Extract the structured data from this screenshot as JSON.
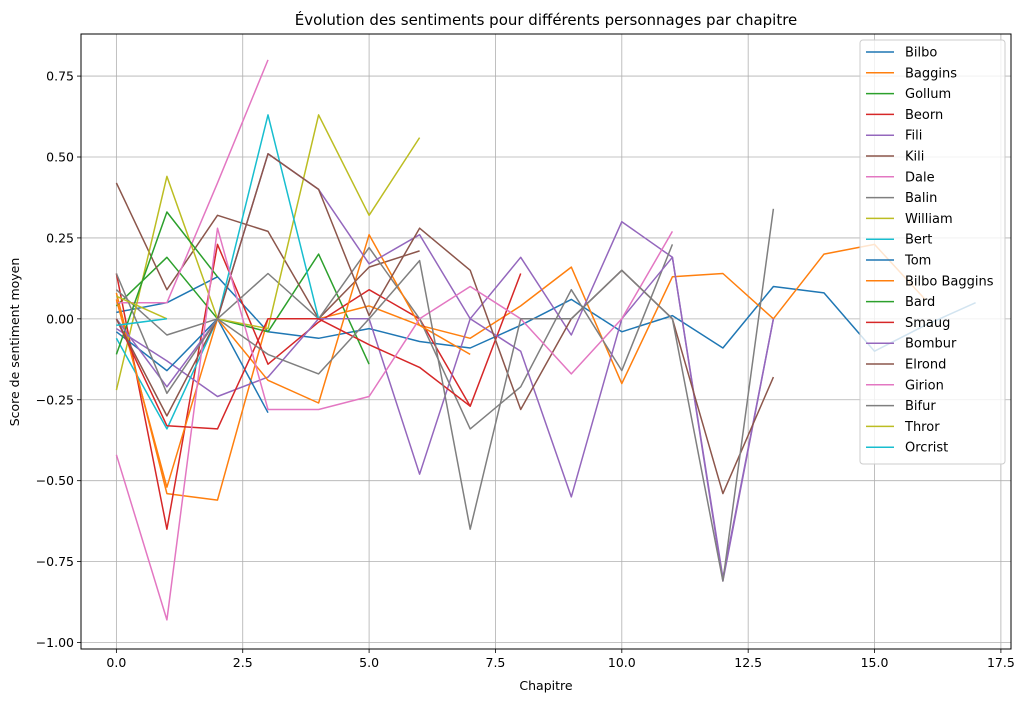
{
  "chart_data": {
    "type": "line",
    "title": "Évolution des sentiments pour différents personnages par chapitre",
    "xlabel": "Chapitre",
    "ylabel": "Score de sentiment moyen",
    "xlim": [
      -0.7,
      17.7
    ],
    "ylim": [
      -1.02,
      0.88
    ],
    "xticks": [
      0,
      2.5,
      5,
      7.5,
      10,
      12.5,
      15,
      17.5
    ],
    "xtick_labels": [
      "0.0",
      "2.5",
      "5.0",
      "7.5",
      "10.0",
      "12.5",
      "15.0",
      "17.5"
    ],
    "yticks": [
      -1.0,
      -0.75,
      -0.5,
      -0.25,
      0,
      0.25,
      0.5,
      0.75
    ],
    "ytick_labels": [
      "−1.00",
      "−0.75",
      "−0.50",
      "−0.25",
      "0.00",
      "0.25",
      "0.50",
      "0.75"
    ],
    "grid": true,
    "legend_position": "top-right",
    "series": [
      {
        "name": "Bilbo",
        "color": "#1f77b4",
        "x": [
          0,
          1,
          2,
          3,
          4,
          5,
          6,
          7,
          8,
          9,
          10,
          11,
          12,
          13,
          14,
          15,
          16,
          17
        ],
        "y": [
          0.02,
          0.05,
          0.13,
          -0.04,
          -0.06,
          -0.03,
          -0.07,
          -0.09,
          -0.02,
          0.06,
          -0.04,
          0.01,
          -0.09,
          0.1,
          0.08,
          -0.1,
          -0.02,
          0.05
        ]
      },
      {
        "name": "Baggins",
        "color": "#ff7f0e",
        "x": [
          0,
          1,
          2,
          3,
          4,
          5,
          6,
          7,
          8,
          9,
          10,
          11,
          12,
          13,
          14,
          15,
          16
        ],
        "y": [
          0.08,
          -0.54,
          -0.56,
          0.0,
          0.0,
          0.04,
          -0.02,
          -0.06,
          0.04,
          0.16,
          -0.2,
          0.13,
          0.14,
          0.0,
          0.2,
          0.23,
          0.06
        ]
      },
      {
        "name": "Gollum",
        "color": "#2ca02c",
        "x": [
          0,
          1,
          2,
          3,
          4,
          5
        ],
        "y": [
          0.04,
          0.19,
          0.0,
          -0.04,
          0.2,
          -0.14
        ]
      },
      {
        "name": "Beorn",
        "color": "#d62728",
        "x": [
          0,
          1,
          2,
          3,
          4,
          5,
          6,
          7,
          8
        ],
        "y": [
          0.14,
          -0.65,
          0.23,
          -0.14,
          -0.01,
          0.09,
          0.0,
          -0.27,
          0.14
        ]
      },
      {
        "name": "Fili",
        "color": "#9467bd",
        "x": [
          0,
          1,
          2,
          3,
          4,
          5,
          6,
          7,
          8,
          9,
          10,
          11,
          12,
          13
        ],
        "y": [
          -0.03,
          -0.13,
          -0.24,
          -0.18,
          0.0,
          0.0,
          -0.48,
          0.0,
          0.19,
          -0.05,
          0.3,
          0.19,
          -0.81,
          0.0
        ]
      },
      {
        "name": "Kili",
        "color": "#8c564b",
        "x": [
          0,
          1,
          2,
          3,
          4,
          5,
          6
        ],
        "y": [
          0.42,
          0.09,
          0.32,
          0.27,
          0.0,
          0.16,
          0.21
        ]
      },
      {
        "name": "Dale",
        "color": "#e377c2",
        "x": [
          0,
          1,
          2,
          3
        ],
        "y": [
          0.05,
          0.05,
          0.42,
          0.8
        ]
      },
      {
        "name": "Balin",
        "color": "#7f7f7f",
        "x": [
          0,
          1,
          2,
          3,
          4,
          5,
          6,
          7,
          8,
          9,
          10,
          11
        ],
        "y": [
          0.09,
          -0.05,
          0.0,
          0.14,
          0.0,
          0.22,
          0.0,
          -0.34,
          -0.21,
          0.09,
          -0.16,
          0.23
        ]
      },
      {
        "name": "William",
        "color": "#bcbd22",
        "x": [
          0,
          1,
          2,
          3,
          4,
          5,
          6
        ],
        "y": [
          -0.22,
          0.44,
          0.0,
          -0.03,
          0.63,
          0.32,
          0.56
        ]
      },
      {
        "name": "Bert",
        "color": "#17becf",
        "x": [
          0,
          1,
          2,
          3,
          4
        ],
        "y": [
          -0.06,
          -0.34,
          0.0,
          0.63,
          0.0
        ]
      },
      {
        "name": "Tom",
        "color": "#1f77b4",
        "x": [
          0,
          1,
          2,
          3
        ],
        "y": [
          -0.04,
          -0.16,
          0.0,
          -0.29
        ]
      },
      {
        "name": "Bilbo Baggins",
        "color": "#ff7f0e",
        "x": [
          0,
          1,
          2,
          3,
          4,
          5,
          6,
          7
        ],
        "y": [
          0.06,
          -0.52,
          0.0,
          -0.19,
          -0.26,
          0.26,
          -0.02,
          -0.11
        ]
      },
      {
        "name": "Bard",
        "color": "#2ca02c",
        "x": [
          0,
          1,
          2
        ],
        "y": [
          -0.11,
          0.33,
          0.13
        ]
      },
      {
        "name": "Smaug",
        "color": "#d62728",
        "x": [
          0,
          1,
          2,
          3,
          4,
          5,
          6,
          7
        ],
        "y": [
          0.0,
          -0.33,
          -0.34,
          0.0,
          0.0,
          -0.08,
          -0.15,
          -0.27
        ]
      },
      {
        "name": "Bombur",
        "color": "#9467bd",
        "x": [
          0,
          1,
          2,
          3,
          4,
          5,
          6,
          7,
          8,
          9,
          10,
          11,
          12,
          13
        ],
        "y": [
          0.0,
          -0.21,
          0.0,
          0.51,
          0.4,
          0.17,
          0.26,
          0.0,
          -0.1,
          -0.55,
          0.0,
          0.19,
          -0.8,
          0.0
        ]
      },
      {
        "name": "Elrond",
        "color": "#8c564b",
        "x": [
          0,
          1,
          2,
          3,
          4,
          5,
          6,
          7,
          8,
          9,
          10,
          11,
          12,
          13
        ],
        "y": [
          0.0,
          -0.3,
          0.0,
          0.51,
          0.4,
          0.01,
          0.28,
          0.15,
          -0.28,
          0.0,
          0.15,
          0.0,
          -0.54,
          -0.18
        ]
      },
      {
        "name": "Girion",
        "color": "#e377c2",
        "x": [
          0,
          1,
          2,
          3,
          4,
          5,
          6,
          7,
          8,
          9,
          10,
          11
        ],
        "y": [
          -0.42,
          -0.93,
          0.28,
          -0.28,
          -0.28,
          -0.24,
          0.0,
          0.1,
          0.0,
          -0.17,
          0.0,
          0.27
        ]
      },
      {
        "name": "Bifur",
        "color": "#7f7f7f",
        "x": [
          0,
          1,
          2,
          3,
          4,
          5,
          6,
          7,
          8,
          9,
          10,
          11,
          12,
          13
        ],
        "y": [
          0.14,
          -0.23,
          0.0,
          -0.11,
          -0.17,
          0.0,
          0.18,
          -0.65,
          0.0,
          0.0,
          0.15,
          0.0,
          -0.81,
          0.34
        ]
      },
      {
        "name": "Thror",
        "color": "#bcbd22",
        "x": [
          0,
          1
        ],
        "y": [
          0.07,
          0.0
        ]
      },
      {
        "name": "Orcrist",
        "color": "#17becf",
        "x": [
          0,
          1
        ],
        "y": [
          -0.02,
          0.0
        ]
      }
    ]
  }
}
